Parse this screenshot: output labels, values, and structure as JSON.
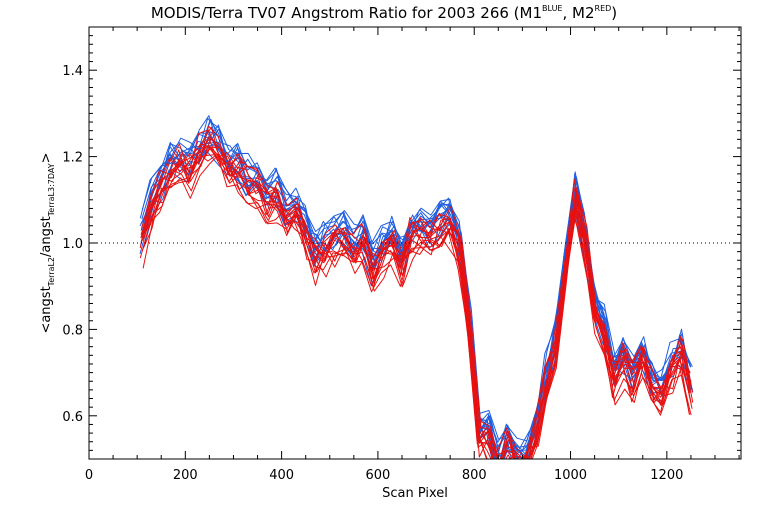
{
  "chart_data": {
    "type": "line",
    "title": "MODIS/Terra TV07 Angstrom Ratio for 2003 266 (M1",
    "title_sup_blue": "BLUE",
    "title_mid": ", M2",
    "title_sup_red": "RED",
    "title_end": ")",
    "xlabel": "Scan Pixel",
    "ylabel_parts": {
      "open": "<angst",
      "sub1": "TerraL2",
      "mid": "/angst",
      "sub2": "TerraL3:7DAY",
      "close": ">"
    },
    "xlim": [
      0,
      1354
    ],
    "ylim": [
      0.5,
      1.5
    ],
    "x_ticks": [
      0,
      200,
      400,
      600,
      800,
      1000,
      1200
    ],
    "x_tick_labels": [
      "0",
      "200",
      "400",
      "600",
      "800",
      "1000",
      "1200"
    ],
    "y_ticks": [
      0.6,
      0.8,
      1.0,
      1.2,
      1.4
    ],
    "y_tick_labels": [
      "0.6",
      "0.8",
      "1.0",
      "1.2",
      "1.4"
    ],
    "reference_line": {
      "y": 1.0,
      "style": "dotted"
    },
    "colors": {
      "M1": "#1f5fe0",
      "M2": "#e81010"
    },
    "profile_x": [
      110,
      130,
      150,
      170,
      190,
      210,
      230,
      250,
      270,
      290,
      310,
      330,
      350,
      370,
      390,
      410,
      430,
      450,
      470,
      490,
      510,
      530,
      550,
      570,
      590,
      610,
      630,
      650,
      670,
      690,
      710,
      730,
      750,
      770,
      790,
      810,
      830,
      850,
      870,
      890,
      910,
      930,
      950,
      970,
      990,
      1010,
      1030,
      1050,
      1070,
      1090,
      1110,
      1130,
      1150,
      1170,
      1190,
      1210,
      1230,
      1250
    ],
    "profile_y": [
      1.0,
      1.08,
      1.12,
      1.17,
      1.18,
      1.16,
      1.2,
      1.23,
      1.2,
      1.17,
      1.16,
      1.13,
      1.12,
      1.09,
      1.1,
      1.06,
      1.06,
      1.02,
      0.96,
      0.98,
      1.0,
      1.01,
      0.98,
      1.0,
      0.93,
      0.98,
      1.0,
      0.95,
      1.01,
      1.02,
      1.0,
      1.03,
      1.04,
      0.98,
      0.8,
      0.55,
      0.54,
      0.47,
      0.52,
      0.48,
      0.49,
      0.56,
      0.67,
      0.76,
      0.93,
      1.1,
      1.0,
      0.84,
      0.78,
      0.68,
      0.72,
      0.68,
      0.73,
      0.66,
      0.65,
      0.7,
      0.74,
      0.65
    ],
    "series": [
      {
        "name": "M1",
        "count": 14,
        "offset": 0.025,
        "spread": 0.045,
        "seed": 11
      },
      {
        "name": "M2",
        "count": 14,
        "offset": -0.005,
        "spread": 0.05,
        "seed": 97
      }
    ]
  }
}
